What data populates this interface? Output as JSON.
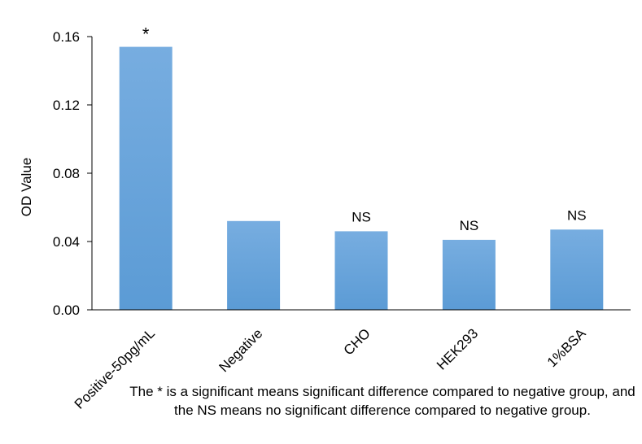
{
  "chart_data": {
    "type": "bar",
    "categories": [
      "Positive-50pg/mL",
      "Negative",
      "CHO",
      "HEK293",
      "1%BSA"
    ],
    "values": [
      0.154,
      0.052,
      0.046,
      0.041,
      0.047
    ],
    "annotations": [
      "*",
      "",
      "NS",
      "NS",
      "NS"
    ],
    "ylabel": "OD Value",
    "xlabel": "",
    "ylim": [
      0,
      0.16
    ],
    "yticks": [
      "0.00",
      "0.04",
      "0.08",
      "0.12",
      "0.16"
    ],
    "grid": false,
    "bar_color": "#5b9bd5",
    "bar_color_light": "#77ade0",
    "footnote": "The * is a significant means significant difference compared to negative group, and the NS means no significant difference compared to negative group."
  }
}
